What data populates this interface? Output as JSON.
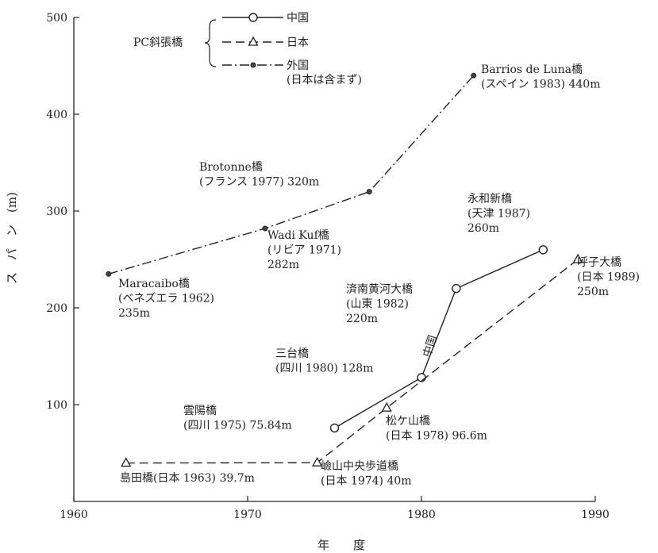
{
  "chart_data": {
    "type": "line",
    "xlabel": "年　　度",
    "ylabel": "ス　パ　ン　(m)",
    "xlim": [
      1960,
      1990
    ],
    "ylim": [
      0,
      500
    ],
    "xticks": [
      "1960",
      "1970",
      "1980",
      "1990"
    ],
    "yticks": [
      "100",
      "200",
      "300",
      "400",
      "500"
    ],
    "grid": false,
    "legend": {
      "placement": "top-left",
      "group_label": "PC斜張橋",
      "items": [
        "中国",
        "日本",
        "外国",
        "(日本は含まず)"
      ]
    },
    "series": [
      {
        "name": "中国",
        "marker": "circle",
        "line": "solid",
        "color": "#222222",
        "points": [
          {
            "x": 1975,
            "y": 75.84
          },
          {
            "x": 1980,
            "y": 128
          },
          {
            "x": 1982,
            "y": 220
          },
          {
            "x": 1987,
            "y": 260
          }
        ],
        "inline_label": "中国"
      },
      {
        "name": "日本",
        "marker": "triangle",
        "line": "dashed",
        "color": "#222222",
        "points": [
          {
            "x": 1963,
            "y": 39.7
          },
          {
            "x": 1974,
            "y": 40
          },
          {
            "x": 1978,
            "y": 96.6
          },
          {
            "x": 1989,
            "y": 250
          }
        ]
      },
      {
        "name": "外国",
        "marker": "dot",
        "line": "dashdot",
        "color": "#222222",
        "points": [
          {
            "x": 1962,
            "y": 235
          },
          {
            "x": 1971,
            "y": 282
          },
          {
            "x": 1977,
            "y": 320
          },
          {
            "x": 1983,
            "y": 440
          }
        ]
      }
    ],
    "annotations": [
      {
        "lines": [
          "Barrios de Luna橋",
          "(スペイン 1983) 440m"
        ]
      },
      {
        "lines": [
          "Brotonne橋",
          "(フランス 1977)  320m"
        ]
      },
      {
        "lines": [
          "Wadi Kuf橋",
          "(リビア 1971)",
          "282m"
        ]
      },
      {
        "lines": [
          "Maracaibo橋",
          "(ベネズエラ 1962)",
          "235m"
        ]
      },
      {
        "lines": [
          "永和新橋",
          "(天津 1987)",
          "260m"
        ]
      },
      {
        "lines": [
          "呼子大橋",
          "(日本 1989)",
          "250m"
        ]
      },
      {
        "lines": [
          "済南黄河大橋",
          "(山東 1982)",
          "220m"
        ]
      },
      {
        "lines": [
          "三台橋",
          "(四川 1980)  128m"
        ]
      },
      {
        "lines": [
          "雲陽橋",
          "(四川 1975)  75.84m"
        ]
      },
      {
        "lines": [
          "松ケ山橋",
          "(日本 1978)  96.6m"
        ]
      },
      {
        "lines": [
          "島田橋(日本 1963)  39.7m"
        ]
      },
      {
        "lines": [
          "嶮山中央歩道橋",
          "(日本 1974)  40m"
        ]
      }
    ]
  }
}
